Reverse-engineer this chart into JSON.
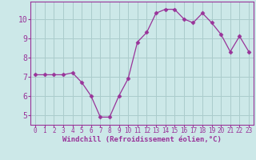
{
  "x": [
    0,
    1,
    2,
    3,
    4,
    5,
    6,
    7,
    8,
    9,
    10,
    11,
    12,
    13,
    14,
    15,
    16,
    17,
    18,
    19,
    20,
    21,
    22,
    23
  ],
  "y": [
    7.1,
    7.1,
    7.1,
    7.1,
    7.2,
    6.7,
    6.0,
    4.9,
    4.9,
    6.0,
    6.9,
    8.8,
    9.3,
    10.3,
    10.5,
    10.5,
    10.0,
    9.8,
    10.3,
    9.8,
    9.2,
    8.3,
    9.1,
    8.3
  ],
  "line_color": "#993399",
  "marker": "D",
  "marker_size": 2.5,
  "bg_color": "#cce8e8",
  "grid_color": "#aacccc",
  "xlabel": "Windchill (Refroidissement éolien,°C)",
  "ylim": [
    4.5,
    10.9
  ],
  "xlim": [
    -0.5,
    23.5
  ],
  "yticks": [
    5,
    6,
    7,
    8,
    9,
    10
  ],
  "xticks": [
    0,
    1,
    2,
    3,
    4,
    5,
    6,
    7,
    8,
    9,
    10,
    11,
    12,
    13,
    14,
    15,
    16,
    17,
    18,
    19,
    20,
    21,
    22,
    23
  ],
  "tick_color": "#993399",
  "label_fontsize": 6.5,
  "ytick_fontsize": 7.0,
  "xtick_fontsize": 5.5,
  "axis_color": "#993399",
  "linewidth": 0.9
}
